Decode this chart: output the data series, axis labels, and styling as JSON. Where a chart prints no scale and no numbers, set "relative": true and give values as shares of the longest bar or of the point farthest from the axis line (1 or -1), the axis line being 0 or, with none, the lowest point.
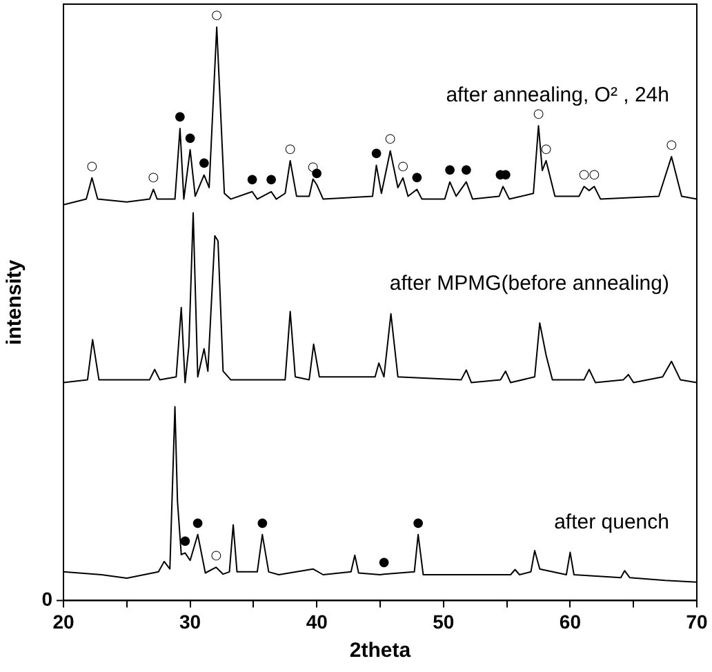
{
  "chart_data": {
    "type": "line",
    "relative": true,
    "xlabel": "2theta",
    "ylabel": "intensity",
    "xlim": [
      20,
      70
    ],
    "xticks": [
      20,
      {
        "value": 25,
        "label": null
      },
      30,
      {
        "value": 35,
        "label": null
      },
      40,
      {
        "value": 45,
        "label": null
      },
      50,
      {
        "value": 55,
        "label": null
      },
      60,
      {
        "value": 65,
        "label": null
      },
      70
    ],
    "marker": "none",
    "line_style": "solid",
    "series": [
      {
        "name": "after annealing, O² , 24h",
        "color": "#000000",
        "x": [
          20,
          21.8,
          22.25,
          22.7,
          25,
          26.8,
          27.1,
          27.4,
          28.8,
          29.2,
          29.5,
          30.0,
          30.4,
          31.1,
          31.5,
          32.1,
          32.7,
          33.2,
          34.9,
          35.3,
          36.4,
          36.8,
          37.5,
          37.9,
          38.4,
          39.4,
          39.7,
          40.0,
          40.5,
          44.4,
          44.7,
          45.1,
          45.8,
          46.4,
          46.8,
          47.2,
          47.9,
          48.3,
          50.1,
          50.5,
          51.0,
          51.8,
          52.3,
          54.4,
          54.7,
          55.2,
          57.1,
          57.5,
          57.8,
          58.1,
          58.8,
          60.7,
          61.1,
          61.5,
          61.9,
          62.4,
          67.0,
          68.0,
          68.8,
          70
        ],
        "values": [
          0.69,
          0.7,
          0.737,
          0.7,
          0.695,
          0.7,
          0.717,
          0.7,
          0.7,
          0.823,
          0.7,
          0.786,
          0.705,
          0.742,
          0.72,
          1,
          0.71,
          0.7,
          0.713,
          0.7,
          0.713,
          0.7,
          0.71,
          0.767,
          0.705,
          0.705,
          0.735,
          0.725,
          0.7,
          0.705,
          0.759,
          0.71,
          0.784,
          0.72,
          0.737,
          0.705,
          0.717,
          0.7,
          0.7,
          0.73,
          0.705,
          0.73,
          0.7,
          0.705,
          0.722,
          0.7,
          0.71,
          0.828,
          0.75,
          0.767,
          0.705,
          0.705,
          0.722,
          0.715,
          0.722,
          0.7,
          0.705,
          0.774,
          0.705,
          0.7
        ]
      },
      {
        "name": "after MPMG(before annealing)",
        "color": "#000000",
        "x": [
          20,
          21.9,
          22.3,
          22.8,
          26.8,
          27.2,
          27.6,
          28.9,
          29.3,
          29.6,
          29.9,
          30.24,
          30.6,
          31.1,
          31.4,
          31.95,
          32.2,
          32.6,
          33.2,
          37.5,
          37.9,
          38.3,
          39.4,
          39.75,
          40.2,
          44.6,
          44.9,
          45.3,
          45.85,
          46.4,
          51.4,
          51.8,
          52.2,
          54.5,
          54.9,
          55.3,
          57.2,
          57.6,
          58.1,
          58.6,
          61.1,
          61.5,
          62,
          64.2,
          64.6,
          65,
          67.3,
          68.0,
          68.7,
          70
        ],
        "values": [
          0.38,
          0.385,
          0.455,
          0.385,
          0.385,
          0.403,
          0.385,
          0.39,
          0.511,
          0.38,
          0.443,
          0.676,
          0.39,
          0.439,
          0.4,
          0.636,
          0.627,
          0.4,
          0.385,
          0.385,
          0.504,
          0.39,
          0.385,
          0.447,
          0.39,
          0.39,
          0.414,
          0.39,
          0.5,
          0.39,
          0.385,
          0.402,
          0.38,
          0.385,
          0.4,
          0.38,
          0.39,
          0.484,
          0.428,
          0.385,
          0.385,
          0.403,
          0.38,
          0.385,
          0.394,
          0.38,
          0.39,
          0.417,
          0.385,
          0.38
        ]
      },
      {
        "name": "after quench",
        "color": "#000000",
        "x": [
          20,
          23,
          25,
          27.5,
          27.95,
          28.4,
          28.8,
          29.0,
          29.3,
          29.6,
          30.0,
          30.6,
          31.2,
          32.05,
          32.6,
          33.1,
          33.4,
          33.7,
          35.3,
          35.7,
          36.2,
          37.0,
          39.7,
          40.5,
          42.7,
          43.0,
          43.3,
          45.0,
          45.3,
          47.7,
          48.0,
          48.4,
          52,
          55.3,
          55.65,
          56.0,
          56.9,
          57.2,
          57.6,
          59.7,
          60.0,
          60.3,
          64.0,
          64.3,
          64.7,
          67.5,
          70
        ],
        "values": [
          0.05,
          0.045,
          0.039,
          0.05,
          0.068,
          0.055,
          0.338,
          0.173,
          0.08,
          0.083,
          0.07,
          0.115,
          0.048,
          0.058,
          0.046,
          0.05,
          0.132,
          0.05,
          0.05,
          0.115,
          0.05,
          0.045,
          0.055,
          0.045,
          0.05,
          0.079,
          0.048,
          0.045,
          0.046,
          0.05,
          0.115,
          0.045,
          0.045,
          0.045,
          0.054,
          0.045,
          0.05,
          0.087,
          0.055,
          0.045,
          0.084,
          0.045,
          0.04,
          0.052,
          0.04,
          0.035,
          0.032
        ]
      }
    ],
    "annotations": [
      "0",
      {
        "text": "○",
        "x": 22.25,
        "y": 0.737
      },
      {
        "text": "○",
        "x": 27.1,
        "y": 0.717
      },
      {
        "text": "●",
        "x": 29.2,
        "y": 0.823
      },
      {
        "text": "●",
        "x": 30.0,
        "y": 0.786
      },
      {
        "text": "●",
        "x": 31.1,
        "y": 0.742
      },
      {
        "text": "○",
        "x": 32.1,
        "y": 1
      },
      {
        "text": "●",
        "x": 34.9,
        "y": 0.713
      },
      {
        "text": "●",
        "x": 36.4,
        "y": 0.713
      },
      {
        "text": "○",
        "x": 37.9,
        "y": 0.767
      },
      {
        "text": "○",
        "x": 39.7,
        "y": 0.735
      },
      {
        "text": "●",
        "x": 40.0,
        "y": 0.725
      },
      {
        "text": "●",
        "x": 44.7,
        "y": 0.759
      },
      {
        "text": "○",
        "x": 45.8,
        "y": 0.784
      },
      {
        "text": "○",
        "x": 46.8,
        "y": 0.737
      },
      {
        "text": "●",
        "x": 47.9,
        "y": 0.717
      },
      {
        "text": "●",
        "x": 50.5,
        "y": 0.73
      },
      {
        "text": "●",
        "x": 51.8,
        "y": 0.73
      },
      {
        "text": "●",
        "x": 54.5,
        "y": 0.722
      },
      {
        "text": "●",
        "x": 54.9,
        "y": 0.722
      },
      {
        "text": "○",
        "x": 57.5,
        "y": 0.828
      },
      {
        "text": "○",
        "x": 58.1,
        "y": 0.767
      },
      {
        "text": "○",
        "x": 61.1,
        "y": 0.722
      },
      {
        "text": "○",
        "x": 61.9,
        "y": 0.722
      },
      {
        "text": "○",
        "x": 68.0,
        "y": 0.774
      },
      {
        "text": "●",
        "x": 29.6,
        "y": 0.083
      },
      {
        "text": "●",
        "x": 30.6,
        "y": 0.115
      },
      {
        "text": "○",
        "x": 32.05,
        "y": 0.058
      },
      {
        "text": "●",
        "x": 35.7,
        "y": 0.115
      },
      {
        "text": "●",
        "x": 45.3,
        "y": 0.046
      },
      {
        "text": "●",
        "x": 48.0,
        "y": 0.115
      }
    ]
  }
}
